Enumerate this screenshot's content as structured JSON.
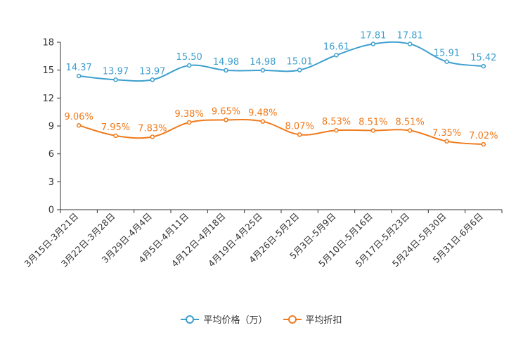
{
  "chart_data": {
    "type": "line",
    "categories": [
      "3月15日-3月21日",
      "3月22日-3月28日",
      "3月29日-4月4日",
      "4月5日-4月11日",
      "4月12日-4月18日",
      "4月19日-4月25日",
      "4月26日-5月2日",
      "5月3日-5月9日",
      "5月10日-5月16日",
      "5月17日-5月23日",
      "5月24日-5月30日",
      "5月31日-6月6日"
    ],
    "series": [
      {
        "name": "平均价格（万）",
        "color": "#3e9fce",
        "values": [
          14.37,
          13.97,
          13.97,
          15.5,
          14.98,
          14.98,
          15.01,
          16.61,
          17.81,
          17.81,
          15.91,
          15.42
        ],
        "labels": [
          "14.37",
          "13.97",
          "13.97",
          "15.50",
          "14.98",
          "14.98",
          "15.01",
          "16.61",
          "17.81",
          "17.81",
          "15.91",
          "15.42"
        ]
      },
      {
        "name": "平均折扣",
        "color": "#f07a1c",
        "values": [
          9.06,
          7.95,
          7.83,
          9.38,
          9.65,
          9.48,
          8.07,
          8.53,
          8.51,
          8.51,
          7.35,
          7.02
        ],
        "labels": [
          "9.06%",
          "7.95%",
          "7.83%",
          "9.38%",
          "9.65%",
          "9.48%",
          "8.07%",
          "8.53%",
          "8.51%",
          "8.51%",
          "7.35%",
          "7.02%"
        ]
      }
    ],
    "yticks": [
      "0",
      "3",
      "6",
      "9",
      "12",
      "15",
      "18"
    ],
    "ylim": [
      0,
      18
    ],
    "legend_position": "bottom-center"
  }
}
